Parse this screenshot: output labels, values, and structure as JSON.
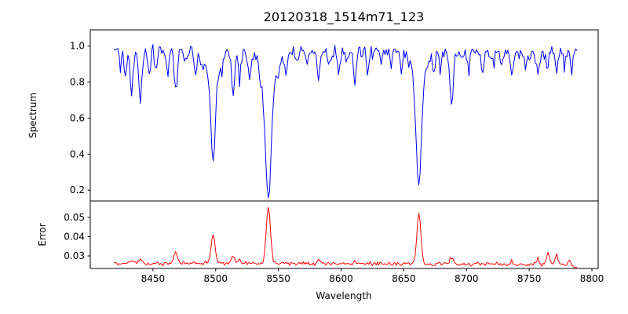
{
  "chart_data": {
    "type": "line",
    "title": "20120318_1514m71_123",
    "xlabel": "Wavelength",
    "xlim": [
      8400,
      8805
    ],
    "xtick_values": [
      8450,
      8500,
      8550,
      8600,
      8650,
      8700,
      8750,
      8800
    ],
    "xtick_labels": [
      "8450",
      "8500",
      "8550",
      "8600",
      "8650",
      "8700",
      "8750",
      "8800"
    ],
    "grid": false,
    "legend": "none",
    "panels": [
      {
        "name": "spectrum",
        "ylabel": "Spectrum",
        "color": "#0000ff",
        "ylim": [
          0.14,
          1.09
        ],
        "ytick_values": [
          0.2,
          0.4,
          0.6,
          0.8,
          1.0
        ],
        "ytick_labels": [
          "0.2",
          "0.4",
          "0.6",
          "0.8",
          "1.0"
        ],
        "model": {
          "x_start": 8419,
          "x_end": 8788,
          "x_step": 1,
          "continuum": 0.968,
          "noise_sigma": 0.02,
          "seed": 12345,
          "clamp_min": 0.145,
          "clamp_max": 1.07,
          "absorption_lines": [
            {
              "c": 8424,
              "d": 0.1,
              "w": 1.0
            },
            {
              "c": 8428,
              "d": 0.12,
              "w": 1.0
            },
            {
              "c": 8433,
              "d": 0.25,
              "w": 1.1
            },
            {
              "c": 8440,
              "d": 0.28,
              "w": 1.2
            },
            {
              "c": 8447,
              "d": 0.16,
              "w": 1.0
            },
            {
              "c": 8452,
              "d": 0.1,
              "w": 0.9
            },
            {
              "c": 8462,
              "d": 0.13,
              "w": 1.0
            },
            {
              "c": 8468,
              "d": 0.2,
              "w": 1.3
            },
            {
              "c": 8476,
              "d": 0.08,
              "w": 0.9
            },
            {
              "c": 8484,
              "d": 0.11,
              "w": 1.0
            },
            {
              "c": 8490,
              "d": 0.08,
              "w": 0.9
            },
            {
              "c": 8498,
              "d": 0.49,
              "w": 1.8
            },
            {
              "c": 8498,
              "d": 0.12,
              "w": 5.0
            },
            {
              "c": 8505,
              "d": 0.07,
              "w": 0.9
            },
            {
              "c": 8514,
              "d": 0.24,
              "w": 1.2
            },
            {
              "c": 8519,
              "d": 0.17,
              "w": 1.0
            },
            {
              "c": 8527,
              "d": 0.12,
              "w": 1.0
            },
            {
              "c": 8536,
              "d": 0.08,
              "w": 0.9
            },
            {
              "c": 8542,
              "d": 0.66,
              "w": 2.4
            },
            {
              "c": 8542,
              "d": 0.13,
              "w": 7.0
            },
            {
              "c": 8550,
              "d": 0.07,
              "w": 0.9
            },
            {
              "c": 8556,
              "d": 0.09,
              "w": 1.0
            },
            {
              "c": 8565,
              "d": 0.07,
              "w": 0.9
            },
            {
              "c": 8572,
              "d": 0.07,
              "w": 0.9
            },
            {
              "c": 8582,
              "d": 0.17,
              "w": 1.2
            },
            {
              "c": 8590,
              "d": 0.08,
              "w": 0.9
            },
            {
              "c": 8598,
              "d": 0.14,
              "w": 1.0
            },
            {
              "c": 8605,
              "d": 0.07,
              "w": 0.9
            },
            {
              "c": 8611,
              "d": 0.18,
              "w": 1.1
            },
            {
              "c": 8621,
              "d": 0.13,
              "w": 1.0
            },
            {
              "c": 8632,
              "d": 0.07,
              "w": 0.9
            },
            {
              "c": 8640,
              "d": 0.06,
              "w": 0.9
            },
            {
              "c": 8648,
              "d": 0.09,
              "w": 1.0
            },
            {
              "c": 8662,
              "d": 0.62,
              "w": 2.1
            },
            {
              "c": 8662,
              "d": 0.13,
              "w": 6.0
            },
            {
              "c": 8674,
              "d": 0.11,
              "w": 1.0
            },
            {
              "c": 8679,
              "d": 0.09,
              "w": 0.9
            },
            {
              "c": 8688,
              "d": 0.3,
              "w": 1.3
            },
            {
              "c": 8696,
              "d": 0.07,
              "w": 0.9
            },
            {
              "c": 8702,
              "d": 0.09,
              "w": 1.0
            },
            {
              "c": 8713,
              "d": 0.11,
              "w": 1.0
            },
            {
              "c": 8722,
              "d": 0.07,
              "w": 0.9
            },
            {
              "c": 8728,
              "d": 0.09,
              "w": 0.9
            },
            {
              "c": 8736,
              "d": 0.12,
              "w": 1.0
            },
            {
              "c": 8747,
              "d": 0.09,
              "w": 0.9
            },
            {
              "c": 8757,
              "d": 0.14,
              "w": 1.1
            },
            {
              "c": 8764,
              "d": 0.11,
              "w": 1.0
            },
            {
              "c": 8772,
              "d": 0.12,
              "w": 1.0
            },
            {
              "c": 8778,
              "d": 0.09,
              "w": 0.9
            },
            {
              "c": 8784,
              "d": 0.1,
              "w": 1.0
            }
          ]
        }
      },
      {
        "name": "error",
        "ylabel": "Error",
        "color": "#ff0000",
        "ylim": [
          0.0235,
          0.0585
        ],
        "ytick_values": [
          0.03,
          0.04,
          0.05
        ],
        "ytick_labels": [
          "0.03",
          "0.04",
          "0.05"
        ],
        "model": {
          "x_start": 8419,
          "x_end": 8788,
          "x_step": 1,
          "baseline_start": 0.0263,
          "baseline_end": 0.0256,
          "noise_sigma": 0.0005,
          "seed": 999,
          "taper": {
            "start": 8780,
            "slope": 0.0003
          },
          "peaks": [
            {
              "c": 8433,
              "a": 0.0015,
              "w": 1.2
            },
            {
              "c": 8440,
              "a": 0.002,
              "w": 1.2
            },
            {
              "c": 8468,
              "a": 0.006,
              "w": 1.4
            },
            {
              "c": 8498,
              "a": 0.0145,
              "w": 1.6
            },
            {
              "c": 8514,
              "a": 0.004,
              "w": 1.2
            },
            {
              "c": 8519,
              "a": 0.002,
              "w": 1.0
            },
            {
              "c": 8542,
              "a": 0.0295,
              "w": 1.7
            },
            {
              "c": 8582,
              "a": 0.002,
              "w": 1.0
            },
            {
              "c": 8611,
              "a": 0.002,
              "w": 1.0
            },
            {
              "c": 8662,
              "a": 0.026,
              "w": 1.6
            },
            {
              "c": 8688,
              "a": 0.0035,
              "w": 1.2
            },
            {
              "c": 8736,
              "a": 0.002,
              "w": 1.0
            },
            {
              "c": 8757,
              "a": 0.003,
              "w": 1.1
            },
            {
              "c": 8765,
              "a": 0.005,
              "w": 1.2
            },
            {
              "c": 8772,
              "a": 0.0045,
              "w": 1.2
            },
            {
              "c": 8782,
              "a": 0.003,
              "w": 1.0
            }
          ]
        }
      }
    ]
  }
}
